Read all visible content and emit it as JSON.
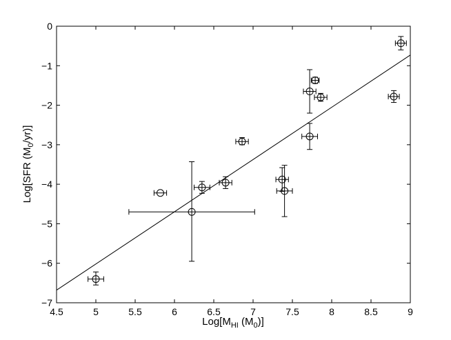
{
  "chart_data": {
    "type": "scatter",
    "title": "",
    "xlabel": {
      "prefix": "Log[M",
      "sub": "HI",
      "suffix": " (M",
      "sub2": "0",
      "end": ")]"
    },
    "ylabel": {
      "prefix": "Log[SFR (M",
      "sub": "0",
      "suffix": "/yr)]"
    },
    "xlim": [
      4.5,
      9
    ],
    "ylim": [
      -7,
      0
    ],
    "x_ticks": [
      "4.5",
      "5",
      "5.5",
      "6",
      "6.5",
      "7",
      "7.5",
      "8",
      "8.5",
      "9"
    ],
    "y_ticks": [
      "0",
      "−1",
      "−2",
      "−3",
      "−4",
      "−5",
      "−6",
      "−7"
    ],
    "grid": false,
    "points": [
      {
        "x": 5.0,
        "y": -6.4,
        "xerr": 0.1,
        "yerr_lo": 0.15,
        "yerr_hi": 0.18
      },
      {
        "x": 5.82,
        "y": -4.22,
        "xerr": 0.08,
        "yerr_lo": 0.0,
        "yerr_hi": 0.0
      },
      {
        "x": 6.22,
        "y": -4.7,
        "xerr": 0.8,
        "yerr_lo": 1.25,
        "yerr_hi": 1.27
      },
      {
        "x": 6.35,
        "y": -4.08,
        "xerr": 0.1,
        "yerr_lo": 0.15,
        "yerr_hi": 0.15
      },
      {
        "x": 6.65,
        "y": -3.96,
        "xerr": 0.08,
        "yerr_lo": 0.15,
        "yerr_hi": 0.15
      },
      {
        "x": 6.86,
        "y": -2.92,
        "xerr": 0.08,
        "yerr_lo": 0.08,
        "yerr_hi": 0.1
      },
      {
        "x": 7.37,
        "y": -3.88,
        "xerr": 0.08,
        "yerr_lo": 0.3,
        "yerr_hi": 0.3
      },
      {
        "x": 7.4,
        "y": -4.17,
        "xerr": 0.1,
        "yerr_lo": 0.65,
        "yerr_hi": 0.65
      },
      {
        "x": 7.72,
        "y": -2.79,
        "xerr": 0.1,
        "yerr_lo": 0.33,
        "yerr_hi": 0.33
      },
      {
        "x": 7.72,
        "y": -1.65,
        "xerr": 0.08,
        "yerr_lo": 0.55,
        "yerr_hi": 0.55
      },
      {
        "x": 7.79,
        "y": -1.37,
        "xerr": 0.05,
        "yerr_lo": 0.08,
        "yerr_hi": 0.08
      },
      {
        "x": 7.86,
        "y": -1.8,
        "xerr": 0.08,
        "yerr_lo": 0.1,
        "yerr_hi": 0.1
      },
      {
        "x": 8.79,
        "y": -1.78,
        "xerr": 0.07,
        "yerr_lo": 0.15,
        "yerr_hi": 0.15
      },
      {
        "x": 8.88,
        "y": -0.43,
        "xerr": 0.07,
        "yerr_lo": 0.17,
        "yerr_hi": 0.17
      }
    ],
    "fit_line": {
      "x": [
        4.5,
        9
      ],
      "y": [
        -6.68,
        -0.73
      ]
    }
  }
}
